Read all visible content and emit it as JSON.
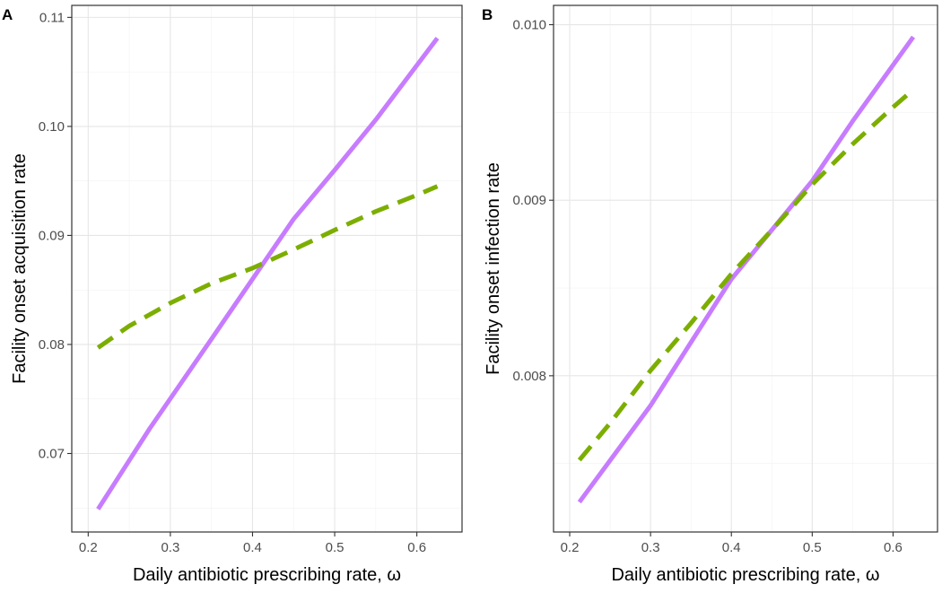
{
  "chart_data": [
    {
      "panel": "A",
      "type": "line",
      "xlabel": "Daily antibiotic prescribing rate, ω",
      "ylabel": "Facility onset acquisition rate",
      "xlim": [
        0.18,
        0.655
      ],
      "ylim": [
        0.0628,
        0.1111
      ],
      "x_ticks": [
        "0.2",
        "0.3",
        "0.4",
        "0.5",
        "0.6"
      ],
      "y_ticks": [
        "0.07",
        "0.08",
        "0.09",
        "0.10",
        "0.11"
      ],
      "grid": true,
      "series": [
        {
          "color": "#c77cff",
          "style": "solid",
          "x": [
            0.212,
            0.275,
            0.35,
            0.45,
            0.5,
            0.55,
            0.625
          ],
          "y": [
            0.0649,
            0.0723,
            0.0805,
            0.0915,
            0.096,
            0.1006,
            0.1081
          ]
        },
        {
          "color": "#7cae00",
          "style": "dashed",
          "x": [
            0.212,
            0.25,
            0.3,
            0.35,
            0.4,
            0.45,
            0.5,
            0.55,
            0.6,
            0.625
          ],
          "y": [
            0.0797,
            0.0817,
            0.0838,
            0.0856,
            0.087,
            0.0887,
            0.0905,
            0.0922,
            0.0937,
            0.0945
          ]
        }
      ]
    },
    {
      "panel": "B",
      "type": "line",
      "xlabel": "Daily antibiotic prescribing rate, ω",
      "ylabel": "Facility onset infection rate",
      "xlim": [
        0.18,
        0.655
      ],
      "ylim": [
        0.00711,
        0.01011
      ],
      "x_ticks": [
        "0.2",
        "0.3",
        "0.4",
        "0.5",
        "0.6"
      ],
      "y_ticks": [
        "0.008",
        "0.009",
        "0.010"
      ],
      "grid": true,
      "series": [
        {
          "color": "#c77cff",
          "style": "solid",
          "x": [
            0.212,
            0.3,
            0.4,
            0.5,
            0.55,
            0.625
          ],
          "y": [
            0.00728,
            0.00783,
            0.00855,
            0.00911,
            0.00945,
            0.00993
          ]
        },
        {
          "color": "#7cae00",
          "style": "dashed",
          "x": [
            0.212,
            0.25,
            0.3,
            0.35,
            0.4,
            0.45,
            0.5,
            0.55,
            0.6,
            0.625
          ],
          "y": [
            0.00752,
            0.00773,
            0.00803,
            0.0083,
            0.00858,
            0.00883,
            0.00909,
            0.00932,
            0.00953,
            0.00963
          ]
        }
      ]
    }
  ]
}
